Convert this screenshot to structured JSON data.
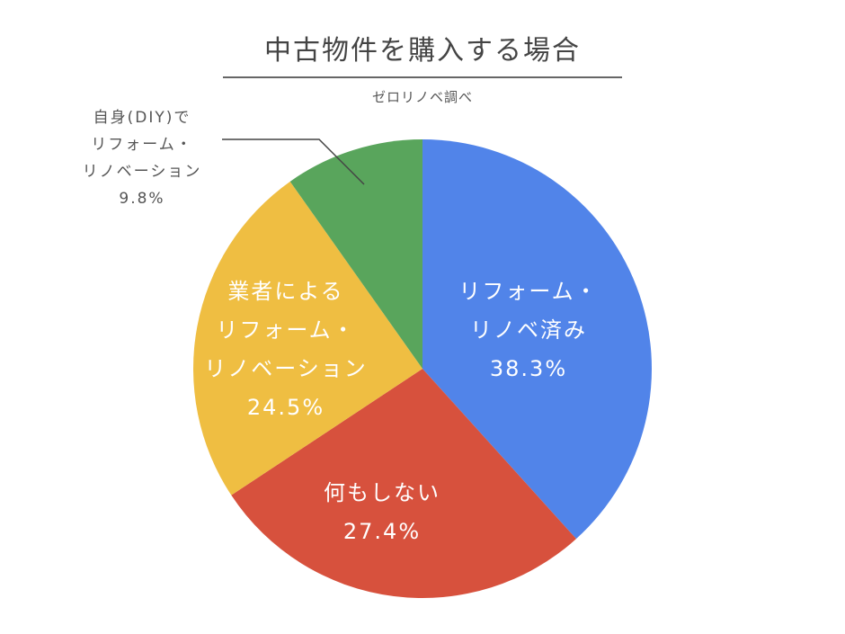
{
  "chart_data": {
    "type": "pie",
    "title": "中古物件を購入する場合",
    "subtitle": "ゼロリノベ調べ",
    "start": "top",
    "direction": "clockwise",
    "slices": [
      {
        "label": [
          "リフォーム・",
          "リノベ済み"
        ],
        "value": 38.3,
        "value_label": "38.3%",
        "color": "#5184e9"
      },
      {
        "label": [
          "何もしない"
        ],
        "value": 27.4,
        "value_label": "27.4%",
        "color": "#d7513d"
      },
      {
        "label": [
          "業者による",
          "リフォーム・",
          "リノベーション"
        ],
        "value": 24.5,
        "value_label": "24.5%",
        "color": "#efbe42"
      },
      {
        "label": [
          "自身(DIY)で",
          "リフォーム・",
          "リノベーション"
        ],
        "value": 9.8,
        "value_label": "9.8%",
        "color": "#59a55c"
      }
    ]
  }
}
